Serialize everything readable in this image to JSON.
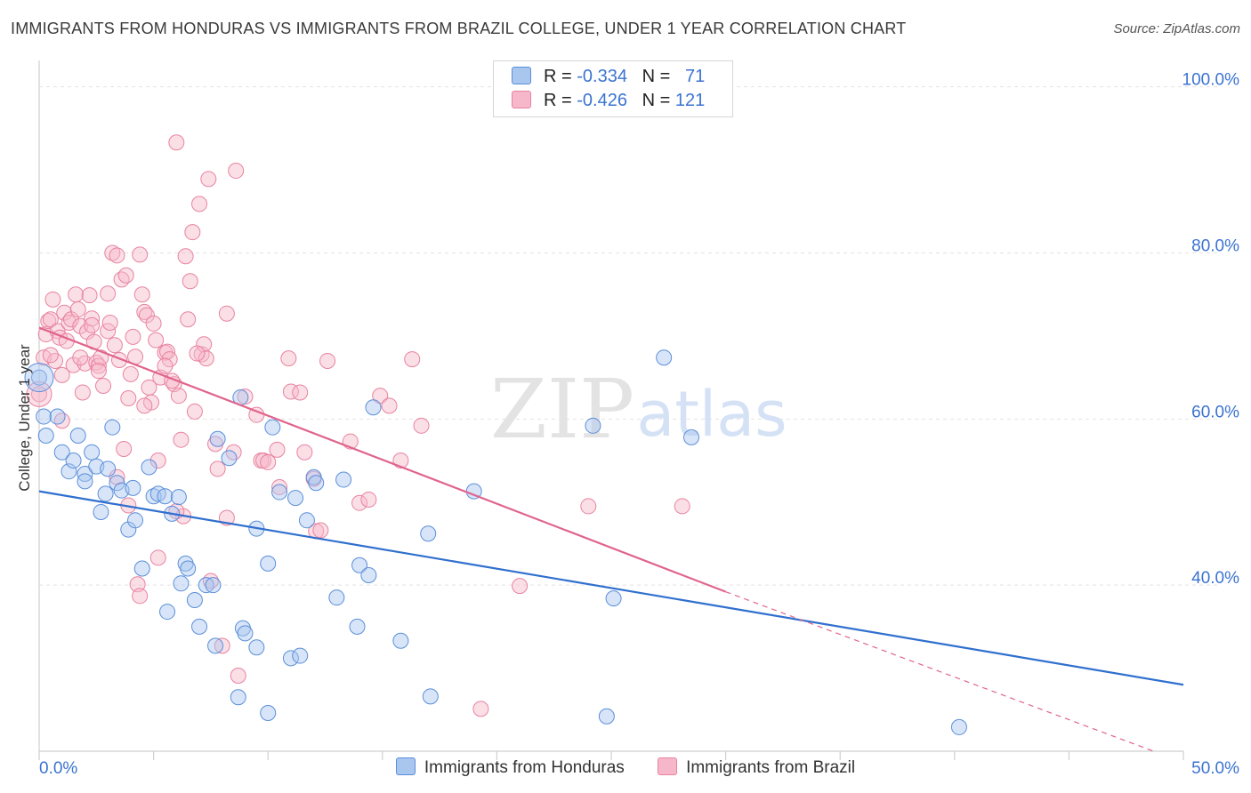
{
  "title": "IMMIGRANTS FROM HONDURAS VS IMMIGRANTS FROM BRAZIL COLLEGE, UNDER 1 YEAR CORRELATION CHART",
  "source": "Source: ZipAtlas.com",
  "watermark": {
    "zip": "ZIP",
    "atlas": "atlas"
  },
  "stats": {
    "honduras": {
      "r_label": "R =",
      "r": "-0.334",
      "n_label": "N =",
      "n": "71"
    },
    "brazil": {
      "r_label": "R =",
      "r": "-0.426",
      "n_label": "N =",
      "n": "121"
    }
  },
  "colors": {
    "honduras_fill": "#a9c6ef",
    "honduras_stroke": "#5b8fd9",
    "honduras_line": "#2f6fce",
    "brazil_fill": "#f7b7ca",
    "brazil_stroke": "#e8839f",
    "brazil_line": "#e0648d",
    "grid": "#e2e2e2",
    "tick_label": "#3b73d1"
  },
  "chart_data": {
    "type": "scatter",
    "title": "IMMIGRANTS FROM HONDURAS VS IMMIGRANTS FROM BRAZIL COLLEGE, UNDER 1 YEAR CORRELATION CHART",
    "xlabel": "",
    "ylabel": "College, Under 1 year",
    "xlim": [
      0,
      50
    ],
    "ylim": [
      20,
      102
    ],
    "x_tick_labels": [
      "0.0%",
      "50.0%"
    ],
    "y_ticks": [
      40,
      60,
      80,
      100
    ],
    "y_tick_labels": [
      "40.0%",
      "60.0%",
      "80.0%",
      "100.0%"
    ],
    "grid": true,
    "legend_position": "bottom",
    "series": [
      {
        "name": "Immigrants from Honduras",
        "trend": {
          "x": [
            0,
            50
          ],
          "y": [
            51.3,
            28.0
          ]
        },
        "points": [
          [
            0.0,
            65.0
          ],
          [
            0.2,
            60.3
          ],
          [
            0.3,
            58.0
          ],
          [
            0.8,
            60.3
          ],
          [
            1.0,
            56.0
          ],
          [
            1.3,
            53.7
          ],
          [
            1.5,
            55.0
          ],
          [
            1.7,
            58.0
          ],
          [
            2.0,
            53.4
          ],
          [
            2.0,
            52.5
          ],
          [
            2.3,
            56.0
          ],
          [
            2.5,
            54.3
          ],
          [
            2.7,
            48.8
          ],
          [
            2.9,
            51.0
          ],
          [
            3.0,
            54.0
          ],
          [
            3.2,
            59.0
          ],
          [
            3.4,
            52.3
          ],
          [
            3.6,
            51.4
          ],
          [
            3.9,
            46.7
          ],
          [
            4.1,
            51.7
          ],
          [
            4.2,
            47.8
          ],
          [
            4.5,
            42.0
          ],
          [
            4.8,
            54.2
          ],
          [
            5.0,
            50.7
          ],
          [
            5.2,
            51.0
          ],
          [
            5.5,
            50.7
          ],
          [
            5.6,
            36.8
          ],
          [
            5.8,
            48.6
          ],
          [
            6.1,
            50.6
          ],
          [
            6.2,
            40.2
          ],
          [
            6.4,
            42.6
          ],
          [
            6.5,
            42.0
          ],
          [
            6.8,
            38.2
          ],
          [
            7.0,
            35.0
          ],
          [
            7.3,
            40.0
          ],
          [
            7.6,
            40.0
          ],
          [
            7.7,
            32.7
          ],
          [
            7.8,
            57.6
          ],
          [
            8.3,
            55.3
          ],
          [
            8.7,
            26.5
          ],
          [
            8.8,
            62.6
          ],
          [
            8.9,
            34.8
          ],
          [
            9.0,
            34.2
          ],
          [
            9.5,
            32.5
          ],
          [
            9.5,
            46.8
          ],
          [
            10.0,
            24.6
          ],
          [
            10.0,
            42.6
          ],
          [
            10.2,
            59.0
          ],
          [
            10.5,
            51.2
          ],
          [
            11.0,
            31.2
          ],
          [
            11.2,
            50.5
          ],
          [
            11.4,
            31.5
          ],
          [
            11.7,
            47.8
          ],
          [
            12.0,
            53.0
          ],
          [
            12.1,
            52.3
          ],
          [
            13.0,
            38.5
          ],
          [
            13.3,
            52.7
          ],
          [
            13.9,
            35.0
          ],
          [
            14.0,
            42.4
          ],
          [
            14.4,
            41.2
          ],
          [
            14.6,
            61.4
          ],
          [
            15.8,
            33.3
          ],
          [
            17.0,
            46.2
          ],
          [
            17.1,
            26.6
          ],
          [
            19.0,
            51.3
          ],
          [
            24.2,
            59.2
          ],
          [
            24.8,
            24.2
          ],
          [
            25.1,
            38.4
          ],
          [
            27.3,
            67.4
          ],
          [
            28.5,
            57.8
          ],
          [
            40.2,
            22.9
          ]
        ]
      },
      {
        "name": "Immigrants from Brazil",
        "trend": {
          "x": [
            0,
            30
          ],
          "y": [
            71.0,
            39.2
          ]
        },
        "trend_dashed": {
          "x": [
            30,
            48.7
          ],
          "y": [
            39.2,
            20.0
          ]
        },
        "points": [
          [
            0.0,
            63.0
          ],
          [
            0.2,
            67.4
          ],
          [
            0.3,
            70.2
          ],
          [
            0.4,
            71.8
          ],
          [
            0.5,
            72.0
          ],
          [
            0.6,
            74.4
          ],
          [
            0.7,
            67.0
          ],
          [
            0.8,
            70.6
          ],
          [
            0.9,
            69.8
          ],
          [
            1.0,
            65.3
          ],
          [
            1.1,
            72.8
          ],
          [
            1.2,
            69.4
          ],
          [
            1.3,
            71.6
          ],
          [
            1.4,
            72.0
          ],
          [
            1.5,
            66.5
          ],
          [
            1.6,
            75.0
          ],
          [
            1.7,
            73.2
          ],
          [
            1.8,
            71.2
          ],
          [
            1.9,
            63.2
          ],
          [
            2.0,
            66.7
          ],
          [
            2.1,
            70.5
          ],
          [
            2.2,
            74.9
          ],
          [
            2.3,
            72.1
          ],
          [
            2.4,
            69.3
          ],
          [
            2.5,
            66.8
          ],
          [
            2.6,
            66.4
          ],
          [
            2.7,
            67.4
          ],
          [
            2.8,
            64.0
          ],
          [
            3.0,
            70.6
          ],
          [
            3.1,
            71.6
          ],
          [
            3.2,
            80.0
          ],
          [
            3.3,
            68.9
          ],
          [
            3.4,
            79.7
          ],
          [
            3.5,
            67.1
          ],
          [
            3.6,
            76.8
          ],
          [
            3.7,
            56.4
          ],
          [
            3.8,
            77.3
          ],
          [
            3.9,
            49.6
          ],
          [
            4.0,
            65.4
          ],
          [
            4.2,
            67.5
          ],
          [
            4.3,
            40.1
          ],
          [
            4.4,
            79.8
          ],
          [
            4.5,
            75.0
          ],
          [
            4.6,
            72.9
          ],
          [
            4.7,
            72.5
          ],
          [
            4.8,
            63.8
          ],
          [
            4.9,
            62.0
          ],
          [
            5.0,
            71.5
          ],
          [
            5.1,
            69.5
          ],
          [
            5.2,
            55.0
          ],
          [
            5.3,
            65.0
          ],
          [
            5.5,
            68.0
          ],
          [
            5.6,
            68.1
          ],
          [
            5.7,
            67.2
          ],
          [
            5.9,
            64.2
          ],
          [
            6.0,
            93.3
          ],
          [
            6.1,
            62.8
          ],
          [
            6.2,
            57.5
          ],
          [
            6.3,
            48.3
          ],
          [
            6.4,
            79.6
          ],
          [
            6.5,
            72.0
          ],
          [
            6.6,
            76.6
          ],
          [
            6.7,
            82.5
          ],
          [
            6.8,
            60.9
          ],
          [
            7.0,
            85.9
          ],
          [
            7.1,
            67.8
          ],
          [
            7.2,
            69.0
          ],
          [
            7.3,
            67.3
          ],
          [
            7.4,
            88.9
          ],
          [
            7.5,
            40.5
          ],
          [
            7.8,
            54.0
          ],
          [
            8.0,
            32.7
          ],
          [
            8.2,
            72.7
          ],
          [
            8.5,
            56.0
          ],
          [
            8.6,
            89.9
          ],
          [
            8.7,
            29.1
          ],
          [
            9.0,
            62.7
          ],
          [
            9.7,
            55.0
          ],
          [
            9.8,
            55.0
          ],
          [
            10.0,
            54.8
          ],
          [
            10.5,
            51.8
          ],
          [
            10.9,
            67.3
          ],
          [
            11.0,
            63.3
          ],
          [
            11.4,
            63.2
          ],
          [
            12.0,
            52.8
          ],
          [
            12.1,
            46.5
          ],
          [
            12.6,
            67.0
          ],
          [
            13.6,
            57.3
          ],
          [
            14.0,
            49.9
          ],
          [
            14.4,
            50.3
          ],
          [
            14.9,
            62.8
          ],
          [
            15.3,
            61.6
          ],
          [
            15.8,
            55.0
          ],
          [
            16.3,
            67.2
          ],
          [
            16.7,
            59.2
          ],
          [
            19.3,
            25.1
          ],
          [
            21.0,
            39.9
          ],
          [
            24.0,
            49.5
          ],
          [
            28.1,
            49.5
          ],
          [
            1.0,
            59.8
          ],
          [
            2.3,
            71.3
          ],
          [
            3.4,
            53.0
          ],
          [
            4.4,
            38.7
          ],
          [
            5.2,
            43.3
          ],
          [
            6.0,
            48.9
          ],
          [
            2.6,
            65.8
          ],
          [
            1.8,
            67.4
          ],
          [
            3.9,
            62.5
          ],
          [
            4.6,
            61.6
          ],
          [
            5.5,
            66.4
          ],
          [
            6.9,
            67.9
          ],
          [
            8.2,
            48.1
          ],
          [
            11.6,
            56.0
          ],
          [
            12.3,
            46.6
          ],
          [
            9.5,
            60.5
          ],
          [
            0.5,
            67.7
          ],
          [
            3.0,
            75.1
          ],
          [
            4.1,
            69.9
          ],
          [
            5.8,
            64.6
          ],
          [
            7.7,
            57.0
          ],
          [
            10.4,
            56.3
          ]
        ]
      }
    ]
  }
}
